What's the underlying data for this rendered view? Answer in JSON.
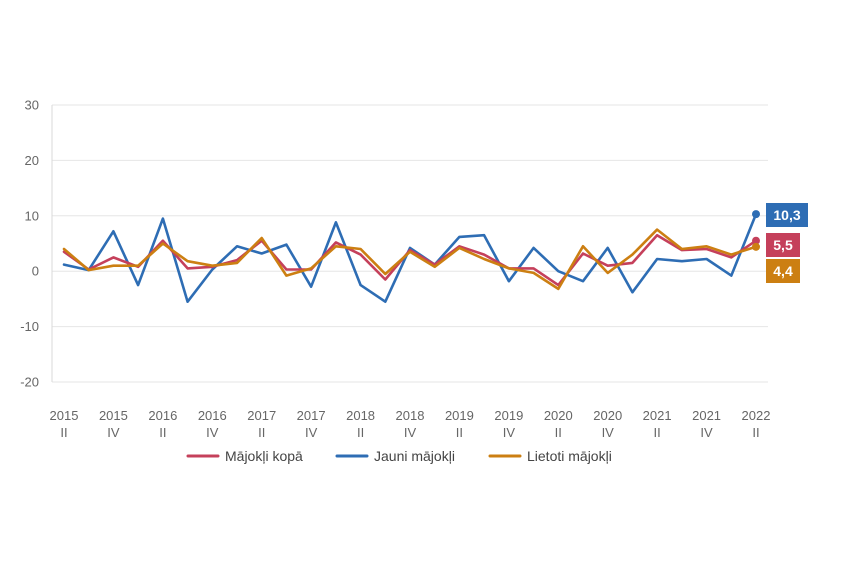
{
  "chart_data": {
    "type": "line",
    "title": "",
    "xlabel": "",
    "ylabel": "",
    "ylim": [
      -20,
      30
    ],
    "yticks": [
      -20,
      -10,
      0,
      10,
      20,
      30
    ],
    "grid": true,
    "legend_position": "bottom",
    "x": [
      "2015 II",
      "2015 III",
      "2015 IV",
      "2016 I",
      "2016 II",
      "2016 III",
      "2016 IV",
      "2017 I",
      "2017 II",
      "2017 III",
      "2017 IV",
      "2018 I",
      "2018 II",
      "2018 III",
      "2018 IV",
      "2019 I",
      "2019 II",
      "2019 III",
      "2019 IV",
      "2020 I",
      "2020 II",
      "2020 III",
      "2020 IV",
      "2021 I",
      "2021 II",
      "2021 III",
      "2021 IV",
      "2022 I",
      "2022 II"
    ],
    "x_tick_labels": [
      {
        "year": "2015",
        "quarter": "II"
      },
      {
        "year": "2015",
        "quarter": "IV"
      },
      {
        "year": "2016",
        "quarter": "II"
      },
      {
        "year": "2016",
        "quarter": "IV"
      },
      {
        "year": "2017",
        "quarter": "II"
      },
      {
        "year": "2017",
        "quarter": "IV"
      },
      {
        "year": "2018",
        "quarter": "II"
      },
      {
        "year": "2018",
        "quarter": "IV"
      },
      {
        "year": "2019",
        "quarter": "II"
      },
      {
        "year": "2019",
        "quarter": "IV"
      },
      {
        "year": "2020",
        "quarter": "II"
      },
      {
        "year": "2020",
        "quarter": "IV"
      },
      {
        "year": "2021",
        "quarter": "II"
      },
      {
        "year": "2021",
        "quarter": "IV"
      },
      {
        "year": "2022",
        "quarter": "II"
      }
    ],
    "series": [
      {
        "name": "Mājokļi kopā",
        "color": "#c5405b",
        "values": [
          3.5,
          0.3,
          2.5,
          0.8,
          5.5,
          0.5,
          0.8,
          2.0,
          5.5,
          0.3,
          0.3,
          5.2,
          3.0,
          -1.5,
          3.8,
          1.2,
          4.5,
          3.0,
          0.5,
          0.5,
          -2.5,
          3.2,
          1.0,
          1.5,
          6.5,
          3.8,
          4.0,
          2.5,
          5.5
        ],
        "end_label": "5,5"
      },
      {
        "name": "Jauni mājokļi",
        "color": "#2e6db4",
        "values": [
          1.2,
          0.2,
          7.2,
          -2.5,
          9.5,
          -5.5,
          0.3,
          4.5,
          3.2,
          4.8,
          -2.8,
          8.8,
          -2.5,
          -5.5,
          4.2,
          1.2,
          6.2,
          6.5,
          -1.8,
          4.2,
          0.0,
          -1.8,
          4.2,
          -3.8,
          2.2,
          1.8,
          2.2,
          -0.8,
          10.3
        ],
        "end_label": "10,3"
      },
      {
        "name": "Lietoti mājokļi",
        "color": "#cc7f12",
        "values": [
          4.0,
          0.2,
          1.0,
          1.0,
          5.0,
          1.8,
          1.0,
          1.5,
          6.0,
          -0.8,
          0.5,
          4.5,
          4.0,
          -0.5,
          3.5,
          0.8,
          4.2,
          2.2,
          0.5,
          -0.3,
          -3.2,
          4.5,
          -0.3,
          3.0,
          7.5,
          4.0,
          4.5,
          3.0,
          4.4
        ],
        "end_label": "4,4"
      }
    ]
  }
}
